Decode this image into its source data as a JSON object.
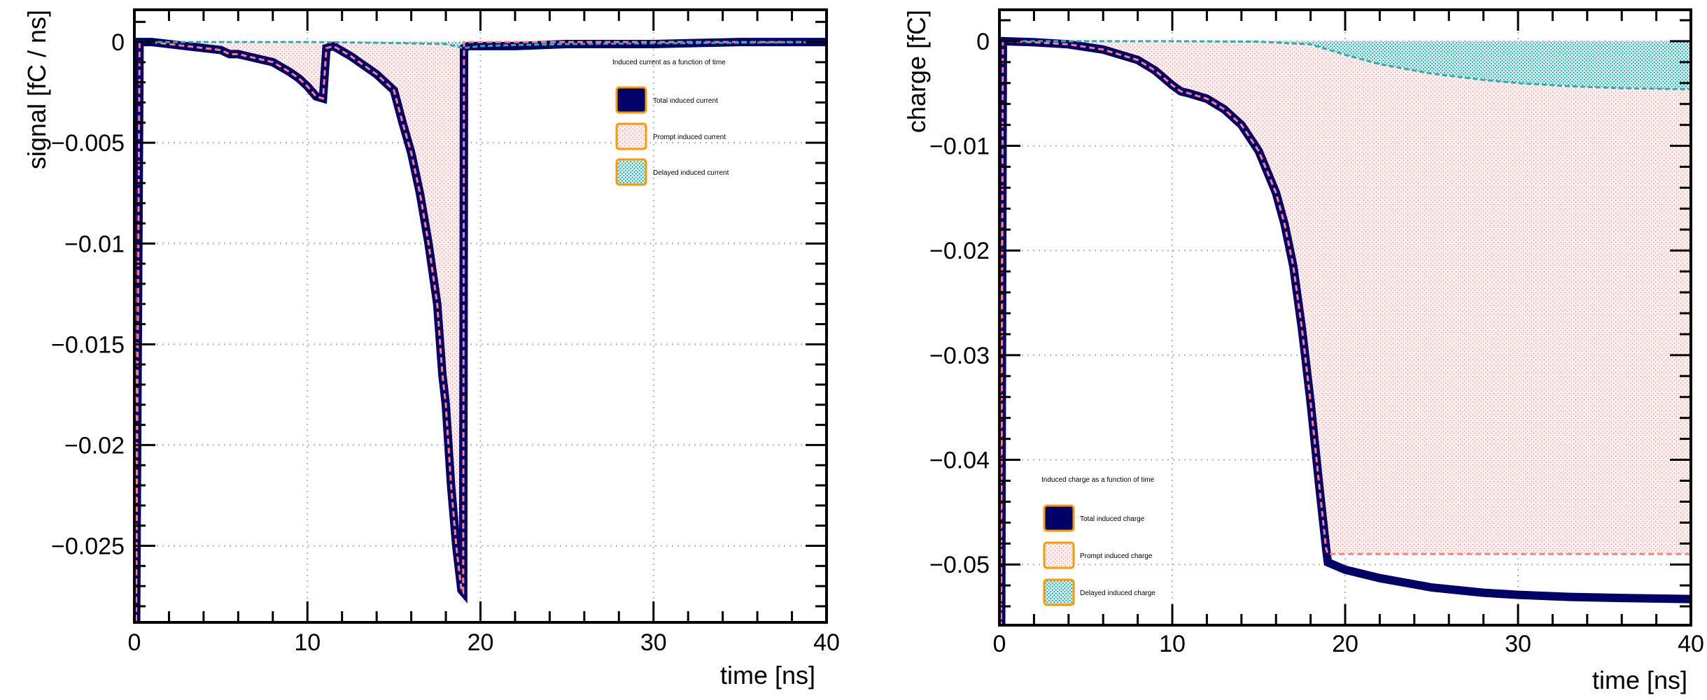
{
  "chart_data": [
    {
      "type": "area",
      "xlabel": "time [ns]",
      "ylabel": "signal [fC / ns]",
      "xlim": [
        0,
        40
      ],
      "ylim": [
        -0.0288,
        0.0016
      ],
      "xticks": [
        0,
        10,
        20,
        30,
        40
      ],
      "xtick_labels": [
        "0",
        "10",
        "20",
        "30",
        "40"
      ],
      "yticks": [
        0,
        -0.005,
        -0.01,
        -0.015,
        -0.02,
        -0.025
      ],
      "ytick_labels": [
        "0",
        "−0.005",
        "−0.01",
        "−0.015",
        "−0.02",
        "−0.025"
      ],
      "grid": true,
      "legend": {
        "title": "Induced current as a function of time",
        "placement": "top-right",
        "entries": [
          "Total induced current",
          "Prompt induced current",
          "Delayed induced current"
        ]
      },
      "series": [
        {
          "name": "Total induced current",
          "x": [
            0,
            0.1,
            0.3,
            1,
            3,
            5,
            5.5,
            6,
            7,
            8,
            9,
            9.5,
            10,
            10.5,
            10.9,
            11.1,
            11.5,
            12.5,
            13,
            14,
            15,
            15.5,
            16,
            16.5,
            17,
            17.5,
            17.8,
            18,
            18.3,
            18.6,
            18.9,
            19.0,
            19.05,
            19.3,
            20,
            22,
            25,
            30,
            35,
            40
          ],
          "values": [
            0,
            -0.0288,
            0,
            0,
            -0.0002,
            -0.0004,
            -0.0006,
            -0.0006,
            -0.0008,
            -0.001,
            -0.0015,
            -0.0018,
            -0.0022,
            -0.0027,
            -0.0028,
            -0.0003,
            -0.0002,
            -0.0007,
            -0.001,
            -0.0016,
            -0.0024,
            -0.004,
            -0.0055,
            -0.0075,
            -0.01,
            -0.013,
            -0.0165,
            -0.018,
            -0.022,
            -0.025,
            -0.0272,
            -0.0273,
            -0.0003,
            -0.0002,
            -0.0002,
            -0.0002,
            -0.0001,
            -0.0001,
            0,
            0
          ]
        },
        {
          "name": "Prompt induced current",
          "x": [
            0,
            0.1,
            0.3,
            1,
            3,
            5,
            5.5,
            6,
            7,
            8,
            9,
            9.5,
            10,
            10.5,
            10.9,
            11.1,
            11.5,
            12.5,
            13,
            14,
            15,
            15.5,
            16,
            16.5,
            17,
            17.5,
            17.8,
            18,
            18.3,
            18.6,
            18.9,
            19.0,
            19.05,
            20,
            40
          ],
          "values": [
            0,
            -0.0288,
            0,
            0,
            -0.0002,
            -0.0004,
            -0.0006,
            -0.0006,
            -0.0008,
            -0.001,
            -0.0015,
            -0.0018,
            -0.0022,
            -0.0027,
            -0.0028,
            -0.0003,
            -0.0002,
            -0.0007,
            -0.001,
            -0.0016,
            -0.0024,
            -0.004,
            -0.0055,
            -0.0075,
            -0.01,
            -0.013,
            -0.0165,
            -0.018,
            -0.022,
            -0.025,
            -0.0272,
            -0.0273,
            0,
            0,
            0
          ]
        },
        {
          "name": "Delayed induced current",
          "x": [
            0,
            10,
            15,
            18,
            19,
            20,
            22,
            25,
            30,
            35,
            40
          ],
          "values": [
            0,
            0,
            -5e-05,
            -0.0001,
            -0.0003,
            -0.0002,
            -0.00015,
            -0.0001,
            -6e-05,
            -3e-05,
            0
          ]
        }
      ]
    },
    {
      "type": "area",
      "xlabel": "time [ns]",
      "ylabel": "charge [fC]",
      "xlim": [
        0,
        40
      ],
      "ylim": [
        -0.0558,
        0.003
      ],
      "xticks": [
        0,
        10,
        20,
        30,
        40
      ],
      "xtick_labels": [
        "0",
        "10",
        "20",
        "30",
        "40"
      ],
      "yticks": [
        0,
        -0.01,
        -0.02,
        -0.03,
        -0.04,
        -0.05
      ],
      "ytick_labels": [
        "0",
        "−0.01",
        "−0.02",
        "−0.03",
        "−0.04",
        "−0.05"
      ],
      "grid": true,
      "legend": {
        "title": "Induced charge as a function of time",
        "placement": "bottom-left",
        "entries": [
          "Total induced charge",
          "Prompt induced charge",
          "Delayed induced charge"
        ]
      },
      "series": [
        {
          "name": "Total induced charge",
          "x": [
            0,
            0.1,
            0.2,
            2,
            4,
            6,
            8,
            9,
            10,
            10.5,
            11,
            12,
            13,
            14,
            15,
            16,
            16.5,
            17,
            17.5,
            18,
            18.5,
            18.9,
            19,
            20,
            22,
            25,
            28,
            30,
            33,
            36,
            40
          ],
          "values": [
            0,
            -0.0558,
            0,
            -0.0001,
            -0.0003,
            -0.0008,
            -0.0018,
            -0.0028,
            -0.0042,
            -0.0048,
            -0.005,
            -0.0055,
            -0.0065,
            -0.008,
            -0.0105,
            -0.0145,
            -0.0175,
            -0.0215,
            -0.0275,
            -0.0345,
            -0.0425,
            -0.0485,
            -0.0498,
            -0.0505,
            -0.0513,
            -0.0522,
            -0.0527,
            -0.0529,
            -0.0531,
            -0.0532,
            -0.0533
          ]
        },
        {
          "name": "Prompt induced charge",
          "x": [
            0,
            0.1,
            0.2,
            2,
            4,
            6,
            8,
            9,
            10,
            10.5,
            11,
            12,
            13,
            14,
            15,
            16,
            16.5,
            17,
            17.5,
            18,
            18.5,
            18.9,
            19,
            20,
            40
          ],
          "values": [
            0,
            -0.0558,
            0,
            -0.0001,
            -0.0003,
            -0.0008,
            -0.0018,
            -0.0028,
            -0.0042,
            -0.0048,
            -0.005,
            -0.0055,
            -0.0065,
            -0.008,
            -0.0105,
            -0.0145,
            -0.0175,
            -0.0215,
            -0.0275,
            -0.0345,
            -0.0425,
            -0.0485,
            -0.049,
            -0.049,
            -0.049
          ]
        },
        {
          "name": "Delayed induced charge",
          "x": [
            0,
            10,
            15,
            18,
            19,
            20,
            22,
            25,
            28,
            30,
            33,
            36,
            40
          ],
          "values": [
            0,
            0,
            -5e-05,
            -0.0003,
            -0.0008,
            -0.0013,
            -0.0022,
            -0.0031,
            -0.0037,
            -0.004,
            -0.0043,
            -0.0045,
            -0.0046
          ]
        }
      ]
    }
  ],
  "colors": {
    "total": "#000066",
    "prompt_line": "#ff8080",
    "prompt_fill": "#ff9999",
    "delayed_line": "#33aaaa",
    "delayed_fill": "#009999",
    "legend_border": "#ff9900",
    "grid": "#b4b4b4"
  }
}
